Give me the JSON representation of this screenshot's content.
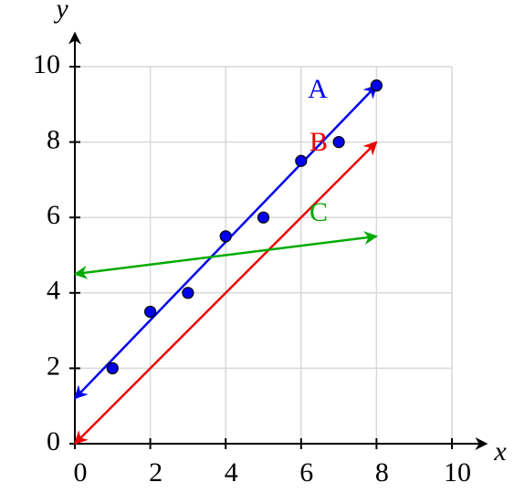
{
  "chart_data": {
    "type": "scatter",
    "xlabel": "x",
    "ylabel": "y",
    "xlim": [
      0,
      10
    ],
    "ylim": [
      0,
      10
    ],
    "xticks": [
      0,
      2,
      4,
      6,
      8,
      10
    ],
    "yticks": [
      0,
      2,
      4,
      6,
      8,
      10
    ],
    "grid": true,
    "x": [
      1,
      2,
      3,
      4,
      5,
      6,
      7,
      8
    ],
    "y": [
      2,
      3.5,
      4,
      5.5,
      6,
      7.5,
      8,
      9.5
    ],
    "color": "#0000ee",
    "lines": [
      {
        "name": "A",
        "color": "#0000ee",
        "x": [
          0,
          8
        ],
        "y": [
          1.2,
          9.5
        ]
      },
      {
        "name": "B",
        "color": "#ee0000",
        "x": [
          0,
          8
        ],
        "y": [
          0,
          8
        ]
      },
      {
        "name": "C",
        "color": "#00aa00",
        "x": [
          0,
          8
        ],
        "y": [
          4.5,
          5.5
        ]
      }
    ]
  }
}
